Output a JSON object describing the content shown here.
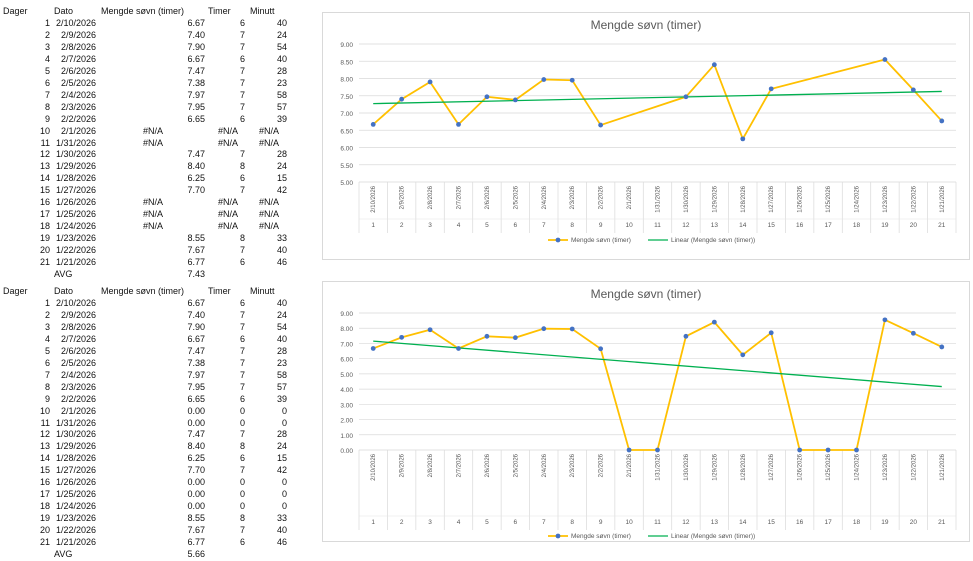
{
  "tables": [
    {
      "headers": [
        "Dager",
        "Dato",
        "Mengde søvn (timer)",
        "Timer",
        "Minutt"
      ],
      "rows": [
        [
          "1",
          "2/10/2026",
          "6.67",
          "6",
          "40"
        ],
        [
          "2",
          "2/9/2026",
          "7.40",
          "7",
          "24"
        ],
        [
          "3",
          "2/8/2026",
          "7.90",
          "7",
          "54"
        ],
        [
          "4",
          "2/7/2026",
          "6.67",
          "6",
          "40"
        ],
        [
          "5",
          "2/6/2026",
          "7.47",
          "7",
          "28"
        ],
        [
          "6",
          "2/5/2026",
          "7.38",
          "7",
          "23"
        ],
        [
          "7",
          "2/4/2026",
          "7.97",
          "7",
          "58"
        ],
        [
          "8",
          "2/3/2026",
          "7.95",
          "7",
          "57"
        ],
        [
          "9",
          "2/2/2026",
          "6.65",
          "6",
          "39"
        ],
        [
          "10",
          "2/1/2026",
          "#N/A",
          "#N/A",
          "#N/A"
        ],
        [
          "11",
          "1/31/2026",
          "#N/A",
          "#N/A",
          "#N/A"
        ],
        [
          "12",
          "1/30/2026",
          "7.47",
          "7",
          "28"
        ],
        [
          "13",
          "1/29/2026",
          "8.40",
          "8",
          "24"
        ],
        [
          "14",
          "1/28/2026",
          "6.25",
          "6",
          "15"
        ],
        [
          "15",
          "1/27/2026",
          "7.70",
          "7",
          "42"
        ],
        [
          "16",
          "1/26/2026",
          "#N/A",
          "#N/A",
          "#N/A"
        ],
        [
          "17",
          "1/25/2026",
          "#N/A",
          "#N/A",
          "#N/A"
        ],
        [
          "18",
          "1/24/2026",
          "#N/A",
          "#N/A",
          "#N/A"
        ],
        [
          "19",
          "1/23/2026",
          "8.55",
          "8",
          "33"
        ],
        [
          "20",
          "1/22/2026",
          "7.67",
          "7",
          "40"
        ],
        [
          "21",
          "1/21/2026",
          "6.77",
          "6",
          "46"
        ]
      ],
      "avg_label": "AVG",
      "avg_value": "7.43"
    },
    {
      "headers": [
        "Dager",
        "Dato",
        "Mengde søvn (timer)",
        "Timer",
        "Minutt"
      ],
      "rows": [
        [
          "1",
          "2/10/2026",
          "6.67",
          "6",
          "40"
        ],
        [
          "2",
          "2/9/2026",
          "7.40",
          "7",
          "24"
        ],
        [
          "3",
          "2/8/2026",
          "7.90",
          "7",
          "54"
        ],
        [
          "4",
          "2/7/2026",
          "6.67",
          "6",
          "40"
        ],
        [
          "5",
          "2/6/2026",
          "7.47",
          "7",
          "28"
        ],
        [
          "6",
          "2/5/2026",
          "7.38",
          "7",
          "23"
        ],
        [
          "7",
          "2/4/2026",
          "7.97",
          "7",
          "58"
        ],
        [
          "8",
          "2/3/2026",
          "7.95",
          "7",
          "57"
        ],
        [
          "9",
          "2/2/2026",
          "6.65",
          "6",
          "39"
        ],
        [
          "10",
          "2/1/2026",
          "0.00",
          "0",
          "0"
        ],
        [
          "11",
          "1/31/2026",
          "0.00",
          "0",
          "0"
        ],
        [
          "12",
          "1/30/2026",
          "7.47",
          "7",
          "28"
        ],
        [
          "13",
          "1/29/2026",
          "8.40",
          "8",
          "24"
        ],
        [
          "14",
          "1/28/2026",
          "6.25",
          "6",
          "15"
        ],
        [
          "15",
          "1/27/2026",
          "7.70",
          "7",
          "42"
        ],
        [
          "16",
          "1/26/2026",
          "0.00",
          "0",
          "0"
        ],
        [
          "17",
          "1/25/2026",
          "0.00",
          "0",
          "0"
        ],
        [
          "18",
          "1/24/2026",
          "0.00",
          "0",
          "0"
        ],
        [
          "19",
          "1/23/2026",
          "8.55",
          "8",
          "33"
        ],
        [
          "20",
          "1/22/2026",
          "7.67",
          "7",
          "40"
        ],
        [
          "21",
          "1/21/2026",
          "6.77",
          "6",
          "46"
        ]
      ],
      "avg_label": "AVG",
      "avg_value": "5.66"
    }
  ],
  "chart_data": [
    {
      "type": "line",
      "title": "Mengde søvn (timer)",
      "xlabel": "",
      "ylabel": "",
      "ylim": [
        5,
        9
      ],
      "ytick_step": 0.5,
      "grid": true,
      "legend": "bottom",
      "categories": [
        "2/10/2026",
        "2/9/2026",
        "2/8/2026",
        "2/7/2026",
        "2/6/2026",
        "2/5/2026",
        "2/4/2026",
        "2/3/2026",
        "2/2/2026",
        "2/1/2026",
        "1/31/2026",
        "1/30/2026",
        "1/29/2026",
        "1/28/2026",
        "1/27/2026",
        "1/26/2026",
        "1/25/2026",
        "1/24/2026",
        "1/23/2026",
        "1/22/2026",
        "1/21/2026"
      ],
      "category_numbers": [
        "1",
        "2",
        "3",
        "4",
        "5",
        "6",
        "7",
        "8",
        "9",
        "10",
        "11",
        "12",
        "13",
        "14",
        "15",
        "16",
        "17",
        "18",
        "19",
        "20",
        "21"
      ],
      "series": [
        {
          "name": "Mengde søvn (timer)",
          "color": "#ffc000",
          "marker_color": "#4472c4",
          "values": [
            6.67,
            7.4,
            7.9,
            6.67,
            7.47,
            7.38,
            7.97,
            7.95,
            6.65,
            null,
            null,
            7.47,
            8.4,
            6.25,
            7.7,
            null,
            null,
            null,
            8.55,
            7.67,
            6.77
          ]
        }
      ],
      "trendline": {
        "name": "Linear (Mengde søvn (timer))",
        "type": "linear",
        "color": "#00b050"
      }
    },
    {
      "type": "line",
      "title": "Mengde søvn (timer)",
      "xlabel": "",
      "ylabel": "",
      "ylim": [
        0,
        9
      ],
      "ytick_step": 1,
      "grid": true,
      "legend": "bottom",
      "categories": [
        "2/10/2026",
        "2/9/2026",
        "2/8/2026",
        "2/7/2026",
        "2/6/2026",
        "2/5/2026",
        "2/4/2026",
        "2/3/2026",
        "2/2/2026",
        "2/1/2026",
        "1/31/2026",
        "1/30/2026",
        "1/29/2026",
        "1/28/2026",
        "1/27/2026",
        "1/26/2026",
        "1/25/2026",
        "1/24/2026",
        "1/23/2026",
        "1/22/2026",
        "1/21/2026"
      ],
      "category_numbers": [
        "1",
        "2",
        "3",
        "4",
        "5",
        "6",
        "7",
        "8",
        "9",
        "10",
        "11",
        "12",
        "13",
        "14",
        "15",
        "16",
        "17",
        "18",
        "19",
        "20",
        "21"
      ],
      "series": [
        {
          "name": "Mengde søvn (timer)",
          "color": "#ffc000",
          "marker_color": "#4472c4",
          "values": [
            6.67,
            7.4,
            7.9,
            6.67,
            7.47,
            7.38,
            7.97,
            7.95,
            6.65,
            0,
            0,
            7.47,
            8.4,
            6.25,
            7.7,
            0,
            0,
            0,
            8.55,
            7.67,
            6.77
          ]
        }
      ],
      "trendline": {
        "name": "Linear (Mengde søvn (timer))",
        "type": "linear",
        "color": "#00b050"
      }
    }
  ]
}
